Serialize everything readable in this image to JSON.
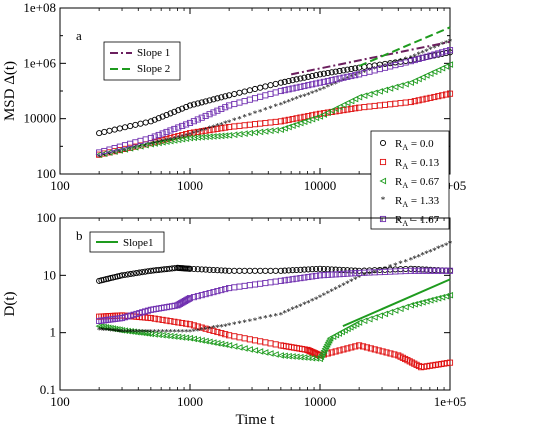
{
  "chart_data": [
    {
      "panel": "a",
      "type": "scatter",
      "ylabel": "MSD Δ(t)",
      "xlabel": "",
      "xscale": "log",
      "yscale": "log",
      "xlim": [
        100,
        100000
      ],
      "ylim": [
        100,
        100000000
      ],
      "xticks": [
        "100",
        "1000",
        "10000",
        "1e+05"
      ],
      "yticks": [
        "100",
        "10000",
        "1e+06",
        "1e+08"
      ],
      "legend_lines": [
        {
          "name": "Slope 1",
          "color": "#6b1f5e",
          "style": "dash-dot"
        },
        {
          "name": "Slope 2",
          "color": "#1e9b1e",
          "style": "dashed"
        }
      ],
      "legend_series_prefix": "R",
      "legend_series_subscript": "A",
      "series": [
        {
          "name_value": " = 0.0",
          "color": "#000000",
          "marker": "circle",
          "points": [
            [
              200,
              3000
            ],
            [
              500,
              8000
            ],
            [
              1000,
              30000
            ],
            [
              2000,
              70000
            ],
            [
              5000,
              200000
            ],
            [
              10000,
              400000
            ],
            [
              20000,
              700000
            ],
            [
              50000,
              1300000
            ],
            [
              100000,
              2500000
            ]
          ]
        },
        {
          "name_value": " = 0.13",
          "color": "#e01010",
          "marker": "square",
          "points": [
            [
              200,
              500
            ],
            [
              500,
              1300
            ],
            [
              1000,
              3000
            ],
            [
              2000,
              5000
            ],
            [
              5000,
              8000
            ],
            [
              10000,
              15000
            ],
            [
              20000,
              25000
            ],
            [
              50000,
              40000
            ],
            [
              100000,
              80000
            ]
          ]
        },
        {
          "name_value": " = 0.67",
          "color": "#1e9b1e",
          "marker": "triangle-left",
          "points": [
            [
              200,
              500
            ],
            [
              500,
              1200
            ],
            [
              1000,
              2000
            ],
            [
              2000,
              2500
            ],
            [
              5000,
              4000
            ],
            [
              10000,
              12000
            ],
            [
              20000,
              60000
            ],
            [
              50000,
              200000
            ],
            [
              100000,
              900000
            ]
          ]
        },
        {
          "name_value": " = 1.33",
          "color": "#ff00ff",
          "marker": "star",
          "points": [
            [
              200,
              400
            ],
            [
              500,
              1100
            ],
            [
              1000,
              2500
            ],
            [
              2000,
              7000
            ],
            [
              5000,
              30000
            ],
            [
              10000,
              100000
            ],
            [
              20000,
              400000
            ],
            [
              50000,
              1500000
            ],
            [
              100000,
              6000000
            ]
          ]
        },
        {
          "name_value": " = 1.67",
          "color": "#7030b0",
          "marker": "square",
          "points": [
            [
              200,
              600
            ],
            [
              500,
              2000
            ],
            [
              1000,
              7000
            ],
            [
              2000,
              30000
            ],
            [
              5000,
              100000
            ],
            [
              10000,
              200000
            ],
            [
              20000,
              400000
            ],
            [
              50000,
              1200000
            ],
            [
              100000,
              3000000
            ]
          ]
        }
      ],
      "slope_lines": [
        {
          "name": "Slope 1",
          "x": [
            6000,
            100000
          ],
          "y": [
            400000,
            6000000
          ]
        },
        {
          "name": "Slope 2",
          "x": [
            20000,
            100000
          ],
          "y": [
            800000,
            20000000
          ]
        }
      ]
    },
    {
      "panel": "b",
      "type": "scatter",
      "ylabel": "D(t)",
      "xlabel": "Time t",
      "xscale": "log",
      "yscale": "log",
      "xlim": [
        100,
        100000
      ],
      "ylim": [
        0.1,
        100
      ],
      "xticks": [
        "100",
        "1000",
        "10000",
        "1e+05"
      ],
      "yticks": [
        "0.1",
        "1",
        "10",
        "100"
      ],
      "legend_lines": [
        {
          "name": "Slope1",
          "color": "#1e9b1e",
          "style": "solid"
        }
      ],
      "series": [
        {
          "name_value": " = 0.0",
          "color": "#000000",
          "marker": "circle",
          "points": [
            [
              200,
              8
            ],
            [
              300,
              10
            ],
            [
              500,
              12
            ],
            [
              800,
              13.5
            ],
            [
              1000,
              13
            ],
            [
              2000,
              12
            ],
            [
              5000,
              12
            ],
            [
              10000,
              13
            ],
            [
              20000,
              12
            ],
            [
              50000,
              13
            ],
            [
              100000,
              12
            ]
          ]
        },
        {
          "name_value": " = 0.13",
          "color": "#e01010",
          "marker": "square",
          "points": [
            [
              200,
              1.9
            ],
            [
              300,
              2
            ],
            [
              500,
              1.8
            ],
            [
              1000,
              1.4
            ],
            [
              2000,
              0.9
            ],
            [
              5000,
              0.6
            ],
            [
              8000,
              0.5
            ],
            [
              10000,
              0.4
            ],
            [
              20000,
              0.6
            ],
            [
              40000,
              0.4
            ],
            [
              60000,
              0.25
            ],
            [
              100000,
              0.3
            ]
          ]
        },
        {
          "name_value": " = 0.67",
          "color": "#1e9b1e",
          "marker": "triangle-left",
          "points": [
            [
              200,
              1.3
            ],
            [
              300,
              1.1
            ],
            [
              500,
              0.95
            ],
            [
              1000,
              0.8
            ],
            [
              2000,
              0.6
            ],
            [
              5000,
              0.4
            ],
            [
              10000,
              0.35
            ],
            [
              12000,
              0.8
            ],
            [
              20000,
              1.5
            ],
            [
              50000,
              3
            ],
            [
              100000,
              4.5
            ]
          ]
        },
        {
          "name_value": " = 1.33",
          "color": "#ff00ff",
          "marker": "star",
          "points": [
            [
              200,
              1.1
            ],
            [
              300,
              1.0
            ],
            [
              500,
              1.0
            ],
            [
              1000,
              1.0
            ],
            [
              2000,
              1.3
            ],
            [
              5000,
              2
            ],
            [
              10000,
              4
            ],
            [
              20000,
              9
            ],
            [
              50000,
              18
            ],
            [
              100000,
              35
            ]
          ]
        },
        {
          "name_value": " = 1.67",
          "color": "#7030b0",
          "marker": "square",
          "points": [
            [
              200,
              1.6
            ],
            [
              300,
              1.8
            ],
            [
              500,
              2.5
            ],
            [
              800,
              3
            ],
            [
              1000,
              4
            ],
            [
              2000,
              6
            ],
            [
              5000,
              8
            ],
            [
              10000,
              10
            ],
            [
              20000,
              11
            ],
            [
              50000,
              12
            ],
            [
              100000,
              12
            ]
          ]
        }
      ],
      "slope_lines": [
        {
          "name": "Slope1",
          "x": [
            15000,
            100000
          ],
          "y": [
            1.3,
            8.5
          ]
        }
      ]
    }
  ],
  "panel_tags": {
    "a": "a",
    "b": "b"
  }
}
